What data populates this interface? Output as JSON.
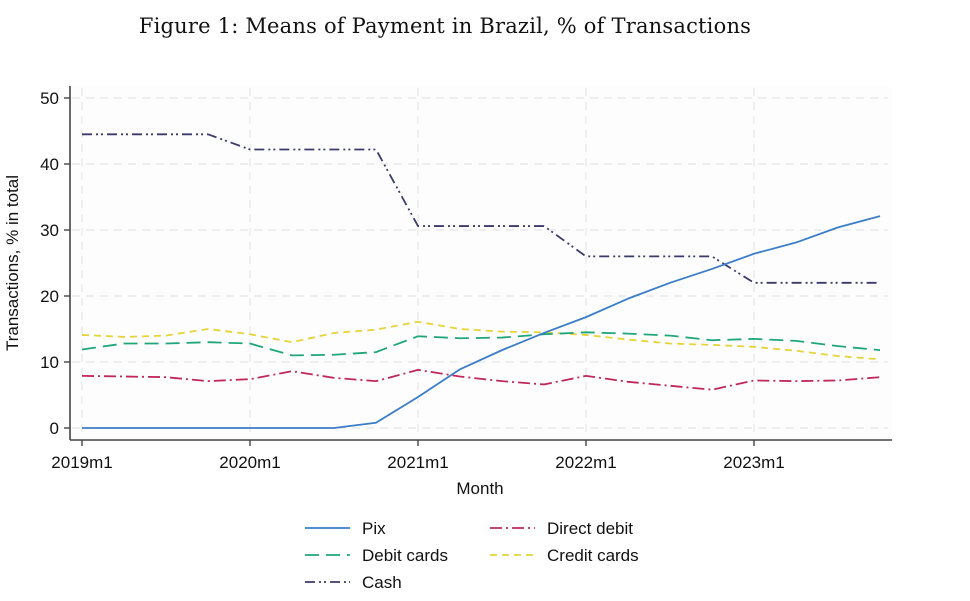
{
  "figure_title": "Figure 1: Means of Payment in Brazil, % of Transactions",
  "chart_data": {
    "type": "line",
    "title": "Figure 1: Means of Payment in Brazil, % of Transactions",
    "xlabel": "Month",
    "ylabel": "Transactions, % in total",
    "x": [
      "2019m1",
      "2019m4",
      "2019m7",
      "2019m10",
      "2020m1",
      "2020m4",
      "2020m7",
      "2020m10",
      "2021m1",
      "2021m4",
      "2021m7",
      "2021m10",
      "2022m1",
      "2022m4",
      "2022m7",
      "2022m10",
      "2023m1",
      "2023m4",
      "2023m7",
      "2023m10"
    ],
    "x_ticks": [
      "2019m1",
      "2020m1",
      "2021m1",
      "2022m1",
      "2023m1"
    ],
    "y_ticks": [
      0,
      10,
      20,
      30,
      40,
      50
    ],
    "ylim": [
      -1.8,
      51
    ],
    "grid": true,
    "legend_position": "bottom",
    "series": [
      {
        "name": "Pix",
        "color": "#3a7dc9",
        "style": "solid",
        "values": [
          0,
          0,
          0,
          0,
          0,
          0,
          0,
          0.8,
          4.7,
          8.9,
          11.8,
          14.4,
          16.8,
          19.6,
          22.0,
          24.1,
          26.4,
          28.1,
          30.4,
          32.1
        ]
      },
      {
        "name": "Direct debit",
        "color": "#c0285a",
        "style": "dashdot",
        "values": [
          7.9,
          7.8,
          7.7,
          7.1,
          7.4,
          8.6,
          7.6,
          7.1,
          8.8,
          7.8,
          7.1,
          6.6,
          7.9,
          7.0,
          6.4,
          5.8,
          7.2,
          7.1,
          7.2,
          7.7
        ]
      },
      {
        "name": "Debit cards",
        "color": "#1fa67a",
        "style": "longdash",
        "values": [
          11.9,
          12.8,
          12.8,
          13.0,
          12.8,
          11.0,
          11.1,
          11.5,
          13.9,
          13.6,
          13.7,
          14.2,
          14.5,
          14.3,
          14.0,
          13.3,
          13.5,
          13.2,
          12.4,
          11.8
        ]
      },
      {
        "name": "Credit cards",
        "color": "#e6d43a",
        "style": "shortdash",
        "values": [
          14.1,
          13.8,
          14.0,
          15.0,
          14.2,
          13.0,
          14.4,
          14.9,
          16.1,
          15.0,
          14.6,
          14.5,
          14.1,
          13.4,
          12.8,
          12.6,
          12.3,
          11.7,
          10.9,
          10.4
        ]
      },
      {
        "name": "Cash",
        "color": "#3b3b6b",
        "style": "dashdotdot",
        "values": [
          44.5,
          44.5,
          44.5,
          44.5,
          42.2,
          42.2,
          42.2,
          42.2,
          30.6,
          30.6,
          30.6,
          30.6,
          26.0,
          26.0,
          26.0,
          26.0,
          22.0,
          22.0,
          22.0,
          22.0
        ]
      }
    ],
    "legend": [
      {
        "name": "Pix"
      },
      {
        "name": "Direct debit"
      },
      {
        "name": "Debit cards"
      },
      {
        "name": "Credit cards"
      },
      {
        "name": "Cash"
      }
    ]
  }
}
